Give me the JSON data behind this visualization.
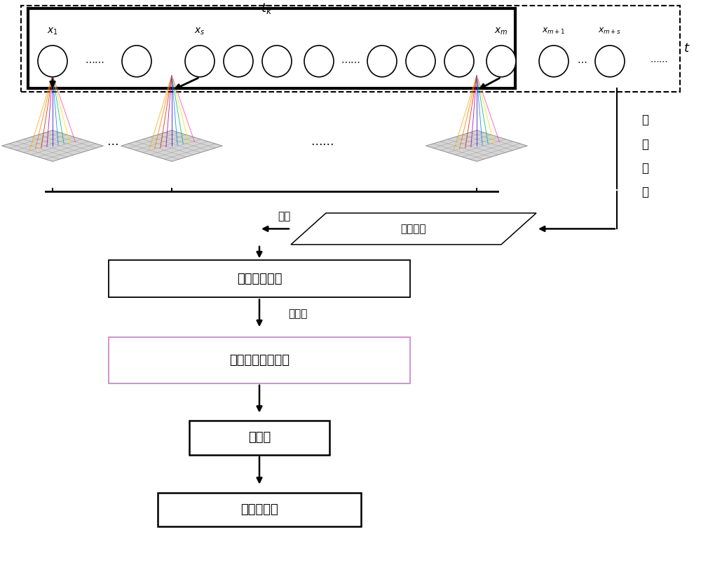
{
  "bg_color": "#ffffff",
  "fig_width": 10.0,
  "fig_height": 8.16,
  "box1_label": "按类概率模型",
  "box2_label": "按类概率图像模型",
  "box3_label": "故障率",
  "box4_label": "可靠性指标",
  "label_update": "更新",
  "label_classify": "类别判断",
  "label_visualize": "可视化",
  "label_realtime": "实时数据"
}
